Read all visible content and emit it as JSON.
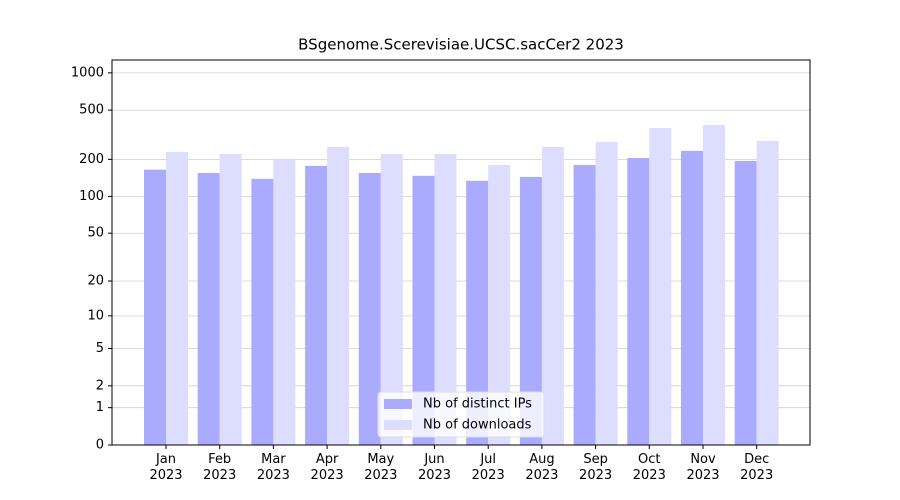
{
  "chart_data": {
    "type": "bar",
    "title": "BSgenome.Scerevisiae.UCSC.sacCer2 2023",
    "categories": [
      "Jan 2023",
      "Feb 2023",
      "Mar 2023",
      "Apr 2023",
      "May 2023",
      "Jun 2023",
      "Jul 2023",
      "Aug 2023",
      "Sep 2023",
      "Oct 2023",
      "Nov 2023",
      "Dec 2023"
    ],
    "series": [
      {
        "name": "Nb of distinct IPs",
        "color": "#aaaaff",
        "values": [
          165,
          155,
          139,
          177,
          155,
          147,
          134,
          144,
          180,
          205,
          234,
          194
        ]
      },
      {
        "name": "Nb of downloads",
        "color": "#ddddff",
        "values": [
          230,
          221,
          198,
          252,
          221,
          221,
          180,
          252,
          277,
          359,
          380,
          282
        ]
      }
    ],
    "y_scale": "log1p",
    "ylim": [
      0,
      1270
    ],
    "yticks": [
      0,
      1,
      2,
      5,
      10,
      20,
      50,
      100,
      200,
      500,
      1000
    ],
    "grid": true,
    "legend": "lower center"
  }
}
